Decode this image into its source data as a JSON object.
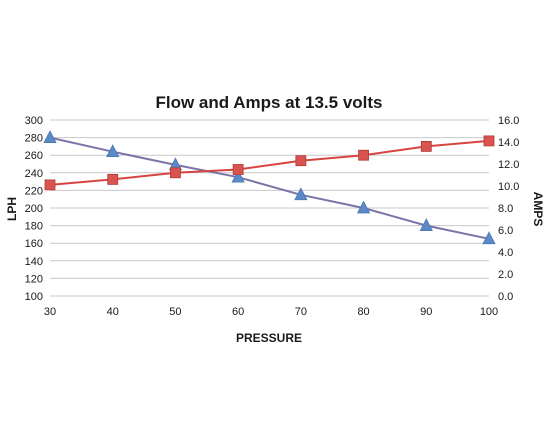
{
  "chart_data": {
    "type": "line",
    "title": "Flow and Amps at 13.5 volts",
    "xlabel": "PRESSURE",
    "ylabel": "LPH",
    "y2label": "AMPS",
    "x": [
      30,
      40,
      50,
      60,
      70,
      80,
      90,
      100
    ],
    "xlim": [
      30,
      100
    ],
    "ylim": [
      100,
      300
    ],
    "y2lim": [
      0.0,
      16.0
    ],
    "x_ticks": [
      "30",
      "40",
      "50",
      "60",
      "70",
      "80",
      "90",
      "100"
    ],
    "y_ticks": [
      "100",
      "120",
      "140",
      "160",
      "180",
      "200",
      "220",
      "240",
      "260",
      "280",
      "300"
    ],
    "y2_ticks": [
      "0.0",
      "2.0",
      "4.0",
      "6.0",
      "8.0",
      "10.0",
      "12.0",
      "14.0",
      "16.0"
    ],
    "grid": true,
    "legend": "none",
    "series": [
      {
        "axis": "left",
        "marker": "triangle",
        "line_color": "#7b74a8",
        "marker_color": "#5b8ac6",
        "values": [
          280,
          264,
          249,
          235,
          215,
          200,
          180,
          165
        ]
      },
      {
        "axis": "right",
        "marker": "square",
        "line_color": "#d64541",
        "marker_color": "#d9534f",
        "values": [
          10.1,
          10.6,
          11.2,
          11.5,
          12.3,
          12.8,
          13.6,
          14.1
        ]
      }
    ]
  }
}
